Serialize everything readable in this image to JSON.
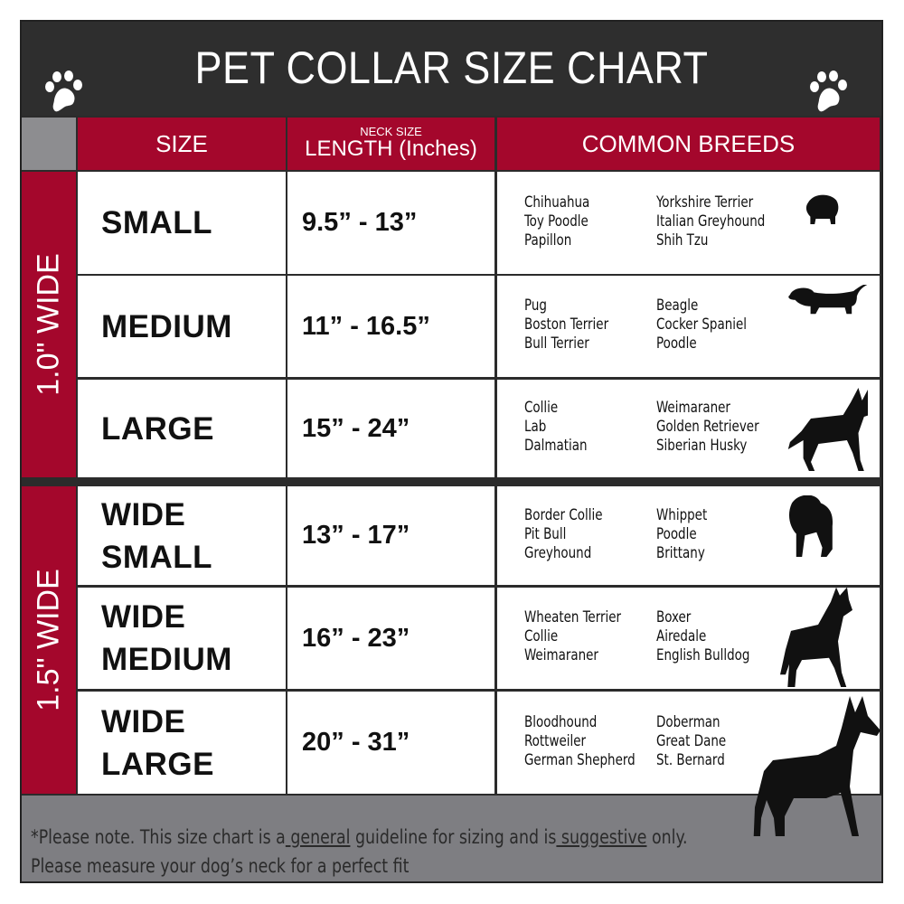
{
  "title": "PET COLLAR SIZE CHART",
  "headers": {
    "size": "SIZE",
    "length_small": "NECK SIZE",
    "length": "LENGTH (Inches)",
    "breeds": "COMMON BREEDS"
  },
  "groups": [
    {
      "label": "1.0\" WIDE"
    },
    {
      "label": "1.5\" WIDE"
    }
  ],
  "rows": [
    {
      "size": "SMALL",
      "size2": "",
      "length": "9.5” - 13”",
      "breeds_a": [
        "Chihuahua",
        "Toy Poodle",
        "Papillon"
      ],
      "breeds_b": [
        "Yorkshire Terrier",
        "Italian Greyhound",
        "Shih Tzu"
      ]
    },
    {
      "size": "MEDIUM",
      "size2": "",
      "length": "11” - 16.5”",
      "breeds_a": [
        "Pug",
        "Boston Terrier",
        "Bull Terrier"
      ],
      "breeds_b": [
        "Beagle",
        "Cocker Spaniel",
        "Poodle"
      ]
    },
    {
      "size": "LARGE",
      "size2": "",
      "length": "15” - 24”",
      "breeds_a": [
        "Collie",
        "Lab",
        "Dalmatian"
      ],
      "breeds_b": [
        "Weimaraner",
        "Golden Retriever",
        "Siberian Husky"
      ]
    },
    {
      "size": "WIDE",
      "size2": "SMALL",
      "length": "13” - 17”",
      "breeds_a": [
        "Border Collie",
        "Pit Bull",
        "Greyhound"
      ],
      "breeds_b": [
        "Whippet",
        "Poodle",
        "Brittany"
      ]
    },
    {
      "size": "WIDE",
      "size2": "MEDIUM",
      "length": "16” - 23”",
      "breeds_a": [
        "Wheaten Terrier",
        "Collie",
        "Weimaraner"
      ],
      "breeds_b": [
        "Boxer",
        "Airedale",
        "English Bulldog"
      ]
    },
    {
      "size": "WIDE",
      "size2": "LARGE",
      "length": "20” - 31”",
      "breeds_a": [
        "Bloodhound",
        "Rottweiler",
        "German Shepherd"
      ],
      "breeds_b": [
        "Doberman",
        "Great Dane",
        "St. Bernard"
      ]
    }
  ],
  "footer": {
    "p1": "*Please note. This size chart is a",
    "u1": " general",
    "p2": " guideline for sizing and is",
    "u2": " suggestive",
    "p3": " only.",
    "line2": "Please measure your dog’s neck for a perfect fit"
  },
  "colors": {
    "header_red": "#a4072c",
    "dark": "#2e2e2e",
    "footer_gray": "#7e7e82"
  }
}
